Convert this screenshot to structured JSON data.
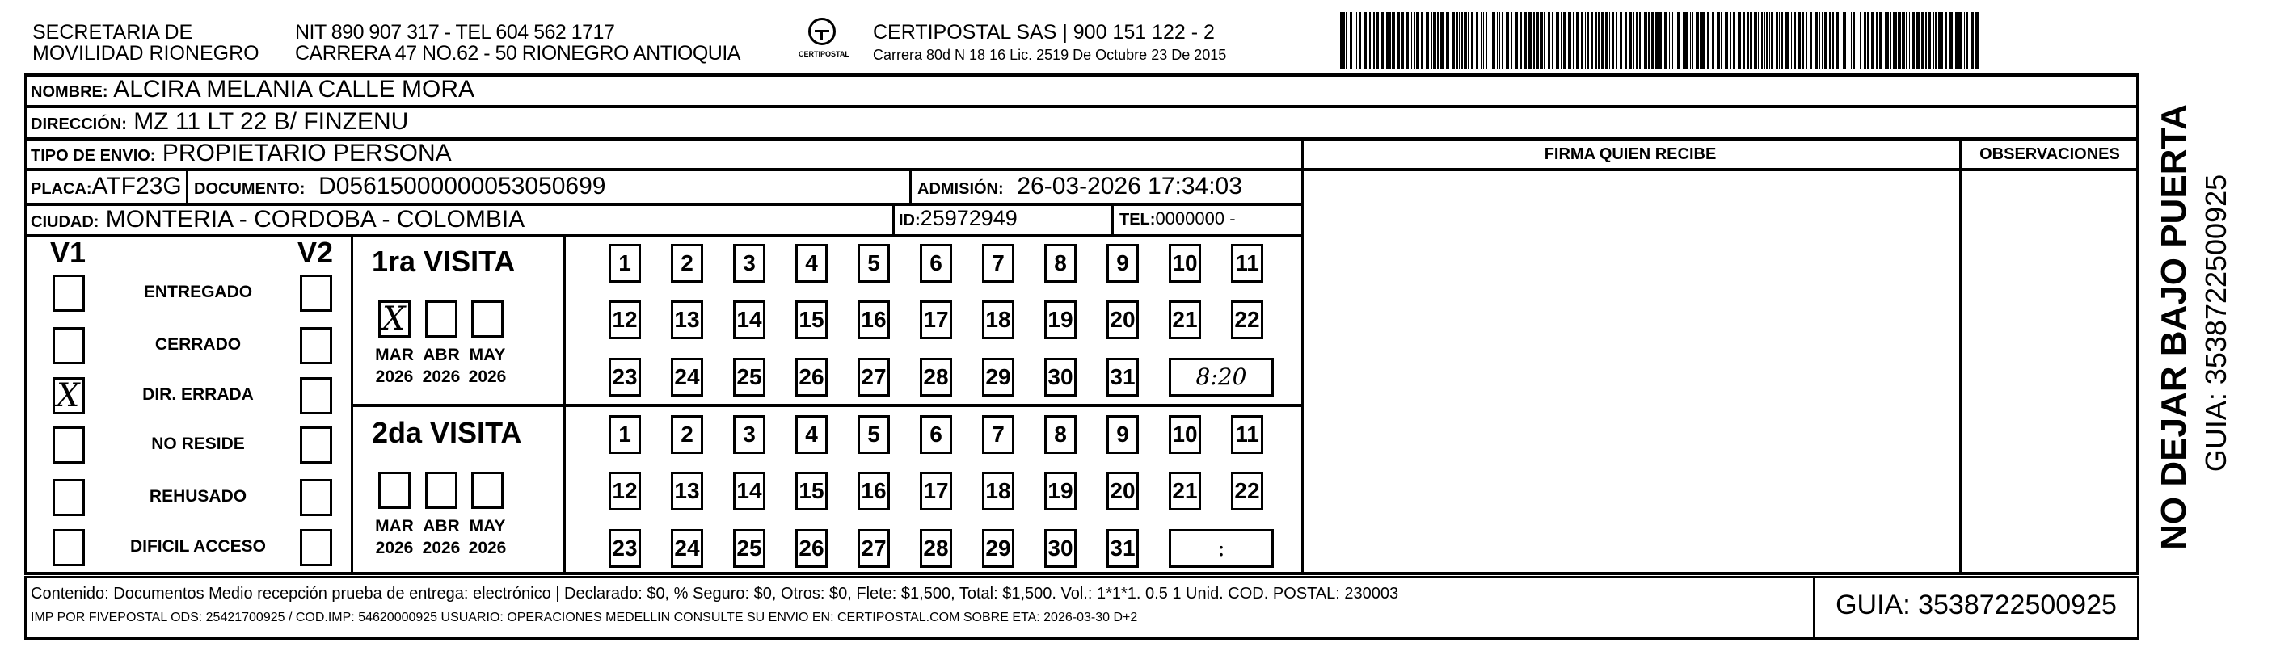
{
  "header": {
    "org_line1": "SECRETARIA  DE",
    "org_line2": "MOVILIDAD RIONEGRO",
    "nit_line": "NIT 890 907 317 - TEL 604 562 1717",
    "address_line": "CARRERA 47 NO.62 - 50 RIONEGRO ANTIOQUIA",
    "logo_text": "CERTIPOSTAL",
    "carrier_line": "CERTIPOSTAL SAS | 900 151 122 - 2",
    "license_line": "Carrera 80d N 18 16  Lic. 2519 De Octubre 23 De 2015"
  },
  "recipient": {
    "nombre_label": "NOMBRE:",
    "nombre": "ALCIRA MELANIA CALLE MORA",
    "direccion_label": "DIRECCIÓN:",
    "direccion": "MZ 11 LT 22 B/ FINZENU",
    "tipo_label": "TIPO DE ENVIO:",
    "tipo": "PROPIETARIO PERSONA",
    "placa_label": "PLACA:",
    "placa": "ATF23G",
    "documento_label": "DOCUMENTO:",
    "documento": "D05615000000053050699",
    "admision_label": "ADMISIÓN:",
    "admision": "26-03-2026 17:34:03",
    "ciudad_label": "CIUDAD:",
    "ciudad": "MONTERIA - CORDOBA - COLOMBIA",
    "id_label": "ID:",
    "id": "25972949",
    "tel_label": "TEL:",
    "tel": "0000000 -"
  },
  "signature": {
    "firma_label": "FIRMA QUIEN RECIBE",
    "observaciones_label": "OBSERVACIONES"
  },
  "status": {
    "v1_label": "V1",
    "v2_label": "V2",
    "options": [
      "ENTREGADO",
      "CERRADO",
      "DIR. ERRADA",
      "NO RESIDE",
      "REHUSADO",
      "DIFICIL ACCESO"
    ],
    "v1_checked": [
      false,
      false,
      true,
      false,
      false,
      false
    ],
    "v2_checked": [
      false,
      false,
      false,
      false,
      false,
      false
    ]
  },
  "visits": [
    {
      "title": "1ra VISITA",
      "months": [
        "MAR",
        "ABR",
        "MAY"
      ],
      "years": [
        "2026",
        "2026",
        "2026"
      ],
      "month_checked": [
        true,
        false,
        false
      ],
      "days": [
        "1",
        "2",
        "3",
        "4",
        "5",
        "6",
        "7",
        "8",
        "9",
        "10",
        "11",
        "12",
        "13",
        "14",
        "15",
        "16",
        "17",
        "18",
        "19",
        "20",
        "21",
        "22",
        "23",
        "24",
        "25",
        "26",
        "27",
        "28",
        "29",
        "30",
        "31"
      ],
      "crossed_day": "31",
      "time": "8:20"
    },
    {
      "title": "2da VISITA",
      "months": [
        "MAR",
        "ABR",
        "MAY"
      ],
      "years": [
        "2026",
        "2026",
        "2026"
      ],
      "month_checked": [
        false,
        false,
        false
      ],
      "days": [
        "1",
        "2",
        "3",
        "4",
        "5",
        "6",
        "7",
        "8",
        "9",
        "10",
        "11",
        "12",
        "13",
        "14",
        "15",
        "16",
        "17",
        "18",
        "19",
        "20",
        "21",
        "22",
        "23",
        "24",
        "25",
        "26",
        "27",
        "28",
        "29",
        "30",
        "31"
      ],
      "crossed_day": "",
      "time": ":"
    }
  ],
  "side": {
    "warning": "NO DEJAR BAJO PUERTA",
    "guia": "GUIA: 3538722500925"
  },
  "footer": {
    "line1": "Contenido: Documentos Medio recepción prueba de entrega: electrónico | Declarado: $0, % Seguro: $0, Otros: $0, Flete: $1,500, Total: $1,500. Vol.: 1*1*1. 0.5  1 Unid. COD. POSTAL: 230003",
    "line2": "IMP POR FIVEPOSTAL ODS: 25421700925 / COD.IMP: 54620000925 USUARIO: OPERACIONES MEDELLIN CONSULTE SU ENVIO EN: CERTIPOSTAL.COM SOBRE ETA: 2026-03-30 D+2",
    "guia": "GUIA: 3538722500925"
  }
}
